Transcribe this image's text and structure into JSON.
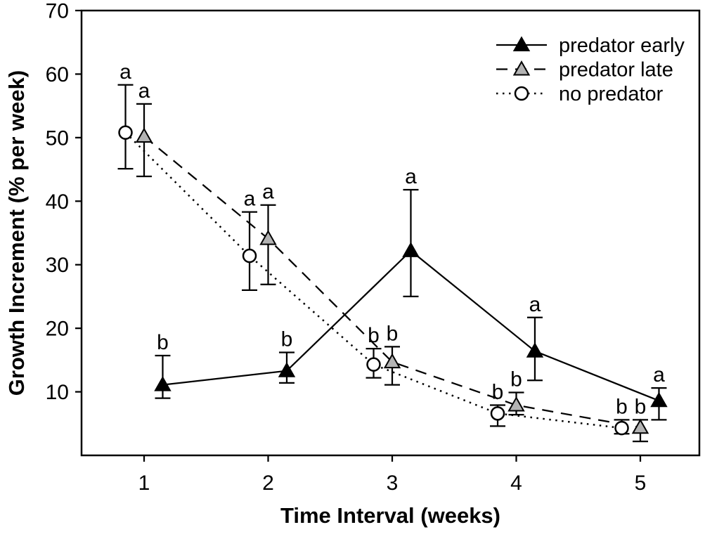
{
  "page": {
    "background_color": "#ffffff"
  },
  "chart_data": {
    "type": "line",
    "title": "",
    "xlabel": "Time Interval (weeks)",
    "ylabel": "Growth Increment (% per week)",
    "xlim": [
      0.5,
      5.5
    ],
    "ylim": [
      0,
      70
    ],
    "x_ticks": [
      1,
      2,
      3,
      4,
      5
    ],
    "y_ticks": [
      10,
      20,
      30,
      40,
      50,
      60,
      70
    ],
    "grid": false,
    "legend_position": "top-right",
    "error_bars": true,
    "x": [
      1,
      2,
      3,
      4,
      5
    ],
    "series": [
      {
        "name": "predator early",
        "marker": "triangle-filled",
        "marker_color": "#000000",
        "line_style": "solid",
        "x_offset": 0.15,
        "values": [
          11.1,
          13.3,
          32.2,
          16.4,
          8.6
        ],
        "err_low": [
          9.0,
          11.4,
          25.0,
          11.8,
          5.6
        ],
        "err_high": [
          15.7,
          16.2,
          41.8,
          21.7,
          10.6
        ],
        "letters": [
          "b",
          "b",
          "a",
          "a",
          "a"
        ]
      },
      {
        "name": "predator late",
        "marker": "triangle-gray",
        "marker_color": "#b3b3b3",
        "line_style": "dashed",
        "x_offset": 0.0,
        "values": [
          50.2,
          34.1,
          14.7,
          7.9,
          4.4
        ],
        "err_low": [
          43.9,
          26.9,
          11.1,
          6.4,
          2.2
        ],
        "err_high": [
          55.3,
          39.4,
          17.1,
          9.9,
          5.6
        ],
        "letters": [
          "a",
          "a",
          "b",
          "b",
          "b"
        ]
      },
      {
        "name": "no predator",
        "marker": "circle-open",
        "marker_color": "#ffffff",
        "line_style": "dotted",
        "x_offset": -0.15,
        "values": [
          50.8,
          31.4,
          14.3,
          6.6,
          4.3
        ],
        "err_low": [
          45.1,
          26.0,
          12.2,
          4.6,
          3.4
        ],
        "err_high": [
          58.3,
          38.3,
          16.8,
          7.9,
          5.6
        ],
        "letters": [
          "a",
          "a",
          "b",
          "b",
          "b"
        ]
      }
    ],
    "colors": {
      "axis": "#000000",
      "text": "#000000",
      "gray_marker_fill": "#b3b3b3",
      "open_marker_fill": "#ffffff"
    }
  }
}
